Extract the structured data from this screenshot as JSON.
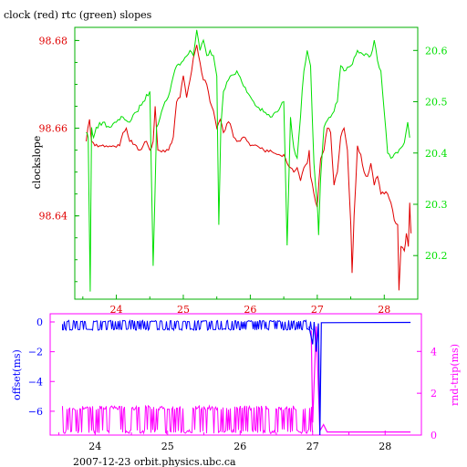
{
  "title": "clock (red) rtc (green) slopes",
  "footer": "2007-12-23 orbit.physics.ubc.ca",
  "colors": {
    "red": "#e00000",
    "green": "#00e000",
    "blue": "#0000ff",
    "magenta": "#ff00ff",
    "frame_top": "#00b000",
    "frame_bottom": "#ff00ff",
    "text": "#000000"
  },
  "chart_data": [
    {
      "type": "line",
      "title": "clock (red) rtc (green) slopes",
      "ylabel": "clockslope",
      "y2label": "",
      "xlim": [
        23.38,
        28.5
      ],
      "ylim": [
        98.621,
        98.683
      ],
      "y2lim": [
        20.115,
        20.645
      ],
      "xticks": [
        24,
        25,
        26,
        27,
        28
      ],
      "yticks": [
        98.64,
        98.66,
        98.68
      ],
      "y2ticks": [
        20.2,
        20.3,
        20.4,
        20.5,
        20.6
      ],
      "series": [
        {
          "name": "clock",
          "color": "#e00000",
          "axis": "left",
          "x": [
            23.55,
            23.6,
            23.63,
            23.68,
            23.75,
            23.85,
            23.95,
            24.05,
            24.1,
            24.15,
            24.2,
            24.3,
            24.35,
            24.4,
            24.45,
            24.5,
            24.55,
            24.58,
            24.62,
            24.7,
            24.78,
            24.85,
            24.9,
            24.95,
            25.0,
            25.05,
            25.1,
            25.15,
            25.2,
            25.25,
            25.3,
            25.35,
            25.4,
            25.45,
            25.5,
            25.55,
            25.6,
            25.65,
            25.7,
            25.75,
            25.8,
            25.9,
            26.0,
            26.1,
            26.2,
            26.3,
            26.4,
            26.5,
            26.55,
            26.6,
            26.65,
            26.7,
            26.75,
            26.8,
            26.85,
            26.88,
            26.9,
            26.95,
            27.0,
            27.05,
            27.1,
            27.15,
            27.2,
            27.25,
            27.3,
            27.35,
            27.4,
            27.45,
            27.5,
            27.52,
            27.55,
            27.6,
            27.65,
            27.7,
            27.75,
            27.8,
            27.85,
            27.9,
            27.95,
            28.0,
            28.05,
            28.1,
            28.15,
            28.2,
            28.22,
            28.25,
            28.3,
            28.33,
            28.36,
            28.38,
            28.4
          ],
          "values": [
            98.657,
            98.662,
            98.657,
            98.656,
            98.656,
            98.656,
            98.656,
            98.656,
            98.659,
            98.66,
            98.657,
            98.656,
            98.655,
            98.656,
            98.657,
            98.655,
            98.657,
            98.665,
            98.655,
            98.655,
            98.655,
            98.658,
            98.666,
            98.667,
            98.672,
            98.667,
            98.671,
            98.676,
            98.679,
            98.675,
            98.671,
            98.67,
            98.666,
            98.664,
            98.66,
            98.662,
            98.659,
            98.661,
            98.661,
            98.658,
            98.657,
            98.658,
            98.656,
            98.656,
            98.655,
            98.655,
            98.654,
            98.654,
            98.652,
            98.651,
            98.65,
            98.651,
            98.648,
            98.651,
            98.652,
            98.655,
            98.649,
            98.645,
            98.642,
            98.653,
            98.655,
            98.66,
            98.659,
            98.647,
            98.65,
            98.658,
            98.66,
            98.655,
            98.638,
            98.627,
            98.64,
            98.656,
            98.654,
            98.65,
            98.649,
            98.652,
            98.647,
            98.649,
            98.645,
            98.645,
            98.645,
            98.643,
            98.639,
            98.638,
            98.623,
            98.633,
            98.632,
            98.636,
            98.633,
            98.643,
            98.636
          ]
        },
        {
          "name": "rtc",
          "color": "#00e000",
          "axis": "right",
          "x": [
            23.55,
            23.58,
            23.61,
            23.63,
            23.66,
            23.7,
            23.8,
            23.9,
            24.0,
            24.1,
            24.2,
            24.3,
            24.4,
            24.5,
            24.55,
            24.6,
            24.7,
            24.8,
            24.85,
            24.9,
            25.0,
            25.1,
            25.15,
            25.2,
            25.25,
            25.3,
            25.35,
            25.4,
            25.45,
            25.5,
            25.53,
            25.56,
            25.6,
            25.7,
            25.8,
            25.9,
            26.0,
            26.1,
            26.2,
            26.3,
            26.4,
            26.5,
            26.55,
            26.6,
            26.65,
            26.7,
            26.8,
            26.85,
            26.9,
            26.95,
            27.0,
            27.02,
            27.05,
            27.1,
            27.2,
            27.3,
            27.35,
            27.4,
            27.5,
            27.6,
            27.7,
            27.8,
            27.85,
            27.9,
            27.95,
            28.0,
            28.05,
            28.1,
            28.2,
            28.25,
            28.3,
            28.35,
            28.38
          ],
          "values": [
            20.44,
            20.43,
            20.13,
            20.45,
            20.43,
            20.45,
            20.46,
            20.45,
            20.46,
            20.47,
            20.46,
            20.48,
            20.5,
            20.52,
            20.18,
            20.45,
            20.49,
            20.52,
            20.55,
            20.57,
            20.58,
            20.6,
            20.59,
            20.64,
            20.6,
            20.62,
            20.59,
            20.6,
            20.59,
            20.55,
            20.26,
            20.45,
            20.52,
            20.55,
            20.56,
            20.53,
            20.51,
            20.49,
            20.48,
            20.47,
            20.48,
            20.5,
            20.22,
            20.47,
            20.41,
            20.39,
            20.56,
            20.6,
            20.57,
            20.38,
            20.3,
            20.24,
            20.35,
            20.45,
            20.47,
            20.5,
            20.57,
            20.56,
            20.57,
            20.6,
            20.59,
            20.59,
            20.62,
            20.58,
            20.56,
            20.48,
            20.4,
            20.39,
            20.4,
            20.41,
            20.42,
            20.46,
            20.43
          ]
        }
      ]
    },
    {
      "type": "line",
      "ylabel": "offset(ms)",
      "y2label": "rnd-trip(ms)",
      "xlim": [
        23.38,
        28.5
      ],
      "ylim": [
        -7.6,
        0.55
      ],
      "y2lim": [
        0,
        5.8
      ],
      "xticks": [
        24,
        25,
        26,
        27,
        28
      ],
      "yticks": [
        0,
        -2,
        -4,
        -6
      ],
      "y2ticks": [
        0,
        2,
        4
      ],
      "series": [
        {
          "name": "offset",
          "color": "#0000ff",
          "axis": "left",
          "x": [
            23.55,
            24.5,
            24.52,
            24.6,
            25.6,
            25.65,
            26.2,
            26.3,
            26.6,
            26.75,
            26.95,
            27.0,
            27.02,
            27.05,
            27.08,
            27.1,
            27.12,
            28.35
          ],
          "values": [
            -0.15,
            -0.15,
            -0.1,
            -0.2,
            -0.2,
            -0.1,
            -0.15,
            -0.1,
            -0.2,
            -0.15,
            -0.3,
            -1.5,
            0.0,
            -2.0,
            -0.1,
            -7.6,
            -0.05,
            -0.03
          ],
          "noise_band": [
            -0.55,
            0.1
          ],
          "noise_until": 27.0
        },
        {
          "name": "rnd-trip",
          "color": "#ff00ff",
          "axis": "right",
          "x": [
            23.55,
            24.5,
            24.52,
            24.6,
            25.6,
            25.63,
            26.2,
            26.35,
            26.8,
            26.98,
            27.0,
            27.05,
            27.1,
            27.15,
            27.2,
            28.35
          ],
          "values": [
            1.2,
            1.2,
            0.3,
            1.3,
            1.3,
            0.4,
            1.2,
            0.6,
            1.2,
            5.0,
            0.6,
            5.2,
            0.2,
            0.5,
            0.15,
            0.15
          ],
          "noise_band": [
            0.08,
            1.4
          ],
          "noise_until": 27.0
        }
      ]
    }
  ]
}
